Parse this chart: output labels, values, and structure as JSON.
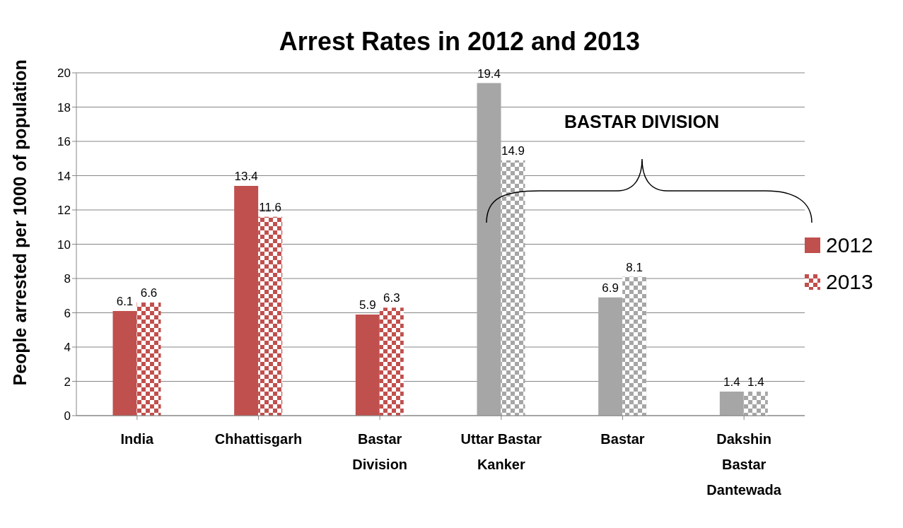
{
  "chart_data": {
    "type": "bar",
    "title": "Arrest Rates in 2012 and 2013",
    "ylabel": "People arrested per 1000 of population",
    "categories": [
      "India",
      "Chhattisgarh",
      "Bastar Division",
      "Uttar Bastar Kanker",
      "Bastar",
      "Dakshin Bastar Dantewada"
    ],
    "series": [
      {
        "name": "2012",
        "color": "#c0504d",
        "colors": [
          "#c0504d",
          "#c0504d",
          "#c0504d",
          "#a6a6a6",
          "#a6a6a6",
          "#a6a6a6"
        ],
        "values": [
          6.1,
          13.4,
          5.9,
          19.4,
          6.9,
          1.4
        ]
      },
      {
        "name": "2013",
        "color": "#c0504d",
        "colors": [
          "#c0504d",
          "#c0504d",
          "#c0504d",
          "#a6a6a6",
          "#a6a6a6",
          "#a6a6a6"
        ],
        "values": [
          6.6,
          11.6,
          6.3,
          14.9,
          8.1,
          1.4
        ]
      }
    ],
    "ylim": [
      0,
      20
    ],
    "yticks": [
      0,
      2,
      4,
      6,
      8,
      10,
      12,
      14,
      16,
      18,
      20
    ],
    "grid": "y",
    "legend": "right",
    "data_labels": true,
    "annotations": [
      "BASTAR DIVISION"
    ]
  }
}
